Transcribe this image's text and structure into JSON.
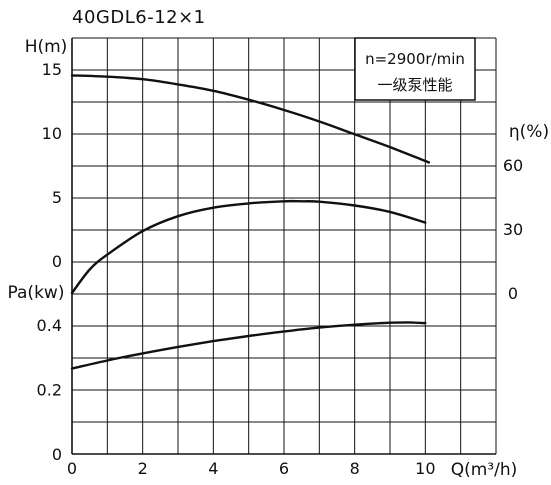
{
  "chart_data": {
    "type": "line",
    "title": "40GDL6-12×1",
    "annotation": {
      "speed": "n=2900r/min",
      "label": "一级泵性能"
    },
    "grid": true,
    "x_axis": {
      "label": "Q(m³/h)",
      "ticks": [
        0,
        2,
        4,
        6,
        8,
        10
      ],
      "range": [
        0,
        12
      ]
    },
    "head_axis": {
      "label": "H(m)",
      "ticks": [
        0,
        5,
        10,
        15
      ],
      "range": [
        0,
        15
      ]
    },
    "efficiency_axis": {
      "label": "η(%)",
      "ticks": [
        0,
        30,
        60
      ],
      "range": [
        0,
        60
      ]
    },
    "power_axis": {
      "label": "Pa(kw)",
      "ticks": [
        0,
        0.2,
        0.4
      ],
      "range": [
        0,
        0.4
      ]
    },
    "series": [
      {
        "axis": "head",
        "x": [
          0,
          1,
          2,
          3,
          4,
          5,
          6,
          7,
          8,
          9,
          10.1
        ],
        "values": [
          14.5,
          14.4,
          14.2,
          13.8,
          13.3,
          12.6,
          11.8,
          10.9,
          9.9,
          8.9,
          7.7
        ]
      },
      {
        "axis": "efficiency",
        "x": [
          0,
          0.5,
          1,
          2,
          3,
          4,
          5,
          6,
          6.5,
          7,
          8,
          9,
          10
        ],
        "values": [
          0,
          11,
          18,
          29,
          36,
          40,
          42,
          43,
          43,
          42.8,
          41,
          38,
          33
        ]
      },
      {
        "axis": "power",
        "x": [
          0,
          1,
          2,
          3,
          4,
          5,
          6,
          7,
          8,
          9,
          9.5,
          10
        ],
        "values": [
          0.265,
          0.29,
          0.312,
          0.332,
          0.35,
          0.366,
          0.38,
          0.392,
          0.401,
          0.407,
          0.408,
          0.406
        ]
      }
    ]
  }
}
